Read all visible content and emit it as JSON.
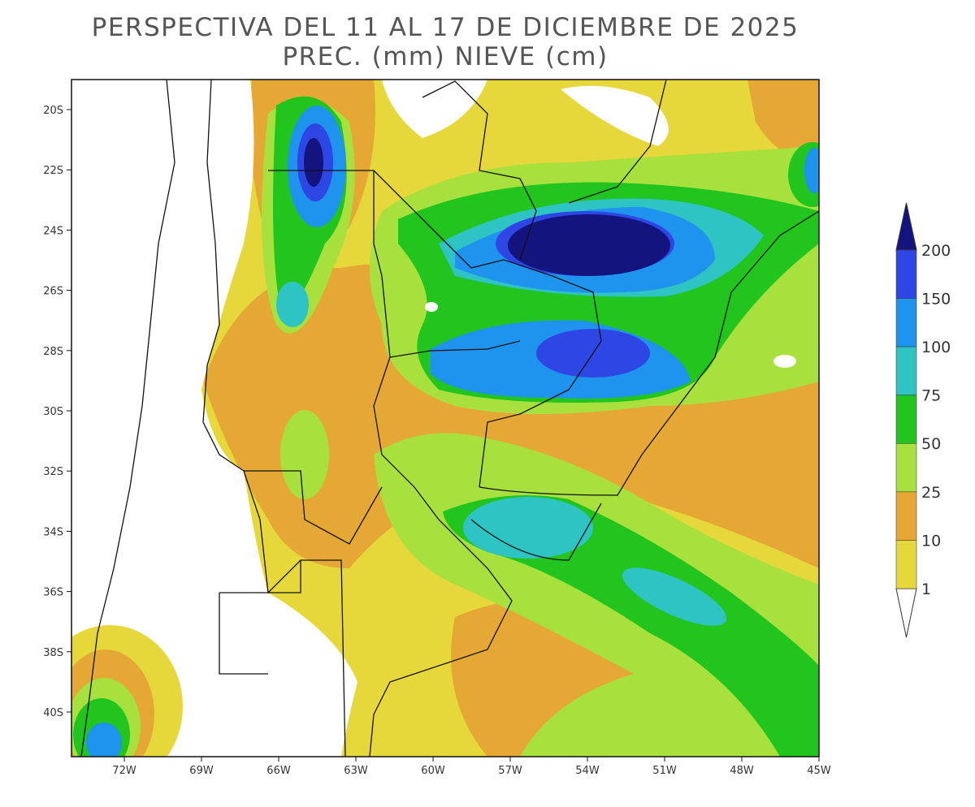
{
  "header": {
    "title": "PERSPECTIVA DEL 11 AL 17 DE DICIEMBRE DE 2025",
    "subtitle": "PREC. (mm) NIEVE (cm)"
  },
  "map": {
    "lat_labels": [
      "20S",
      "22S",
      "24S",
      "26S",
      "28S",
      "30S",
      "32S",
      "34S",
      "36S",
      "38S",
      "40S"
    ],
    "lon_labels": [
      "72W",
      "69W",
      "66W",
      "63W",
      "60W",
      "57W",
      "54W",
      "51W",
      "48W",
      "45W"
    ]
  },
  "colorbar": {
    "levels": [
      1,
      10,
      25,
      50,
      75,
      100,
      150,
      200
    ],
    "colors": [
      "#e6d83a",
      "#e6a834",
      "#a8e03e",
      "#22c41e",
      "#2ec4c4",
      "#1e94ee",
      "#2e46e4",
      "#14147e"
    ],
    "below_color": "#ffffff"
  }
}
